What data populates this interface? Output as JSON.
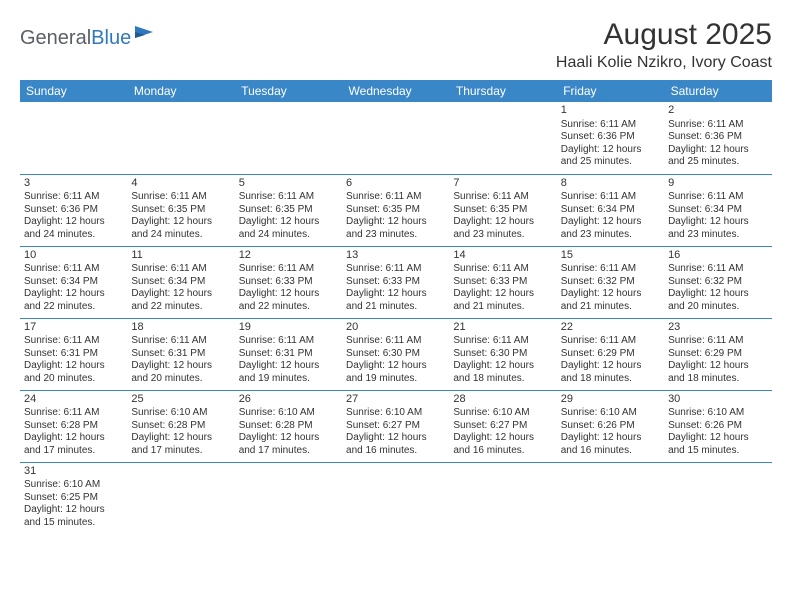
{
  "logo": {
    "text1": "General",
    "text2": "Blue"
  },
  "title": "August 2025",
  "location": "Haali Kolie Nzikro, Ivory Coast",
  "colors": {
    "header_bg": "#3a87c8",
    "header_text": "#ffffff",
    "border": "#3a87c8",
    "text": "#333333",
    "logo_gray": "#5a6066",
    "logo_blue": "#2f78bd",
    "background": "#ffffff"
  },
  "dayHeaders": [
    "Sunday",
    "Monday",
    "Tuesday",
    "Wednesday",
    "Thursday",
    "Friday",
    "Saturday"
  ],
  "weeks": [
    [
      null,
      null,
      null,
      null,
      null,
      {
        "n": "1",
        "sr": "Sunrise: 6:11 AM",
        "ss": "Sunset: 6:36 PM",
        "d1": "Daylight: 12 hours",
        "d2": "and 25 minutes."
      },
      {
        "n": "2",
        "sr": "Sunrise: 6:11 AM",
        "ss": "Sunset: 6:36 PM",
        "d1": "Daylight: 12 hours",
        "d2": "and 25 minutes."
      }
    ],
    [
      {
        "n": "3",
        "sr": "Sunrise: 6:11 AM",
        "ss": "Sunset: 6:36 PM",
        "d1": "Daylight: 12 hours",
        "d2": "and 24 minutes."
      },
      {
        "n": "4",
        "sr": "Sunrise: 6:11 AM",
        "ss": "Sunset: 6:35 PM",
        "d1": "Daylight: 12 hours",
        "d2": "and 24 minutes."
      },
      {
        "n": "5",
        "sr": "Sunrise: 6:11 AM",
        "ss": "Sunset: 6:35 PM",
        "d1": "Daylight: 12 hours",
        "d2": "and 24 minutes."
      },
      {
        "n": "6",
        "sr": "Sunrise: 6:11 AM",
        "ss": "Sunset: 6:35 PM",
        "d1": "Daylight: 12 hours",
        "d2": "and 23 minutes."
      },
      {
        "n": "7",
        "sr": "Sunrise: 6:11 AM",
        "ss": "Sunset: 6:35 PM",
        "d1": "Daylight: 12 hours",
        "d2": "and 23 minutes."
      },
      {
        "n": "8",
        "sr": "Sunrise: 6:11 AM",
        "ss": "Sunset: 6:34 PM",
        "d1": "Daylight: 12 hours",
        "d2": "and 23 minutes."
      },
      {
        "n": "9",
        "sr": "Sunrise: 6:11 AM",
        "ss": "Sunset: 6:34 PM",
        "d1": "Daylight: 12 hours",
        "d2": "and 23 minutes."
      }
    ],
    [
      {
        "n": "10",
        "sr": "Sunrise: 6:11 AM",
        "ss": "Sunset: 6:34 PM",
        "d1": "Daylight: 12 hours",
        "d2": "and 22 minutes."
      },
      {
        "n": "11",
        "sr": "Sunrise: 6:11 AM",
        "ss": "Sunset: 6:34 PM",
        "d1": "Daylight: 12 hours",
        "d2": "and 22 minutes."
      },
      {
        "n": "12",
        "sr": "Sunrise: 6:11 AM",
        "ss": "Sunset: 6:33 PM",
        "d1": "Daylight: 12 hours",
        "d2": "and 22 minutes."
      },
      {
        "n": "13",
        "sr": "Sunrise: 6:11 AM",
        "ss": "Sunset: 6:33 PM",
        "d1": "Daylight: 12 hours",
        "d2": "and 21 minutes."
      },
      {
        "n": "14",
        "sr": "Sunrise: 6:11 AM",
        "ss": "Sunset: 6:33 PM",
        "d1": "Daylight: 12 hours",
        "d2": "and 21 minutes."
      },
      {
        "n": "15",
        "sr": "Sunrise: 6:11 AM",
        "ss": "Sunset: 6:32 PM",
        "d1": "Daylight: 12 hours",
        "d2": "and 21 minutes."
      },
      {
        "n": "16",
        "sr": "Sunrise: 6:11 AM",
        "ss": "Sunset: 6:32 PM",
        "d1": "Daylight: 12 hours",
        "d2": "and 20 minutes."
      }
    ],
    [
      {
        "n": "17",
        "sr": "Sunrise: 6:11 AM",
        "ss": "Sunset: 6:31 PM",
        "d1": "Daylight: 12 hours",
        "d2": "and 20 minutes."
      },
      {
        "n": "18",
        "sr": "Sunrise: 6:11 AM",
        "ss": "Sunset: 6:31 PM",
        "d1": "Daylight: 12 hours",
        "d2": "and 20 minutes."
      },
      {
        "n": "19",
        "sr": "Sunrise: 6:11 AM",
        "ss": "Sunset: 6:31 PM",
        "d1": "Daylight: 12 hours",
        "d2": "and 19 minutes."
      },
      {
        "n": "20",
        "sr": "Sunrise: 6:11 AM",
        "ss": "Sunset: 6:30 PM",
        "d1": "Daylight: 12 hours",
        "d2": "and 19 minutes."
      },
      {
        "n": "21",
        "sr": "Sunrise: 6:11 AM",
        "ss": "Sunset: 6:30 PM",
        "d1": "Daylight: 12 hours",
        "d2": "and 18 minutes."
      },
      {
        "n": "22",
        "sr": "Sunrise: 6:11 AM",
        "ss": "Sunset: 6:29 PM",
        "d1": "Daylight: 12 hours",
        "d2": "and 18 minutes."
      },
      {
        "n": "23",
        "sr": "Sunrise: 6:11 AM",
        "ss": "Sunset: 6:29 PM",
        "d1": "Daylight: 12 hours",
        "d2": "and 18 minutes."
      }
    ],
    [
      {
        "n": "24",
        "sr": "Sunrise: 6:11 AM",
        "ss": "Sunset: 6:28 PM",
        "d1": "Daylight: 12 hours",
        "d2": "and 17 minutes."
      },
      {
        "n": "25",
        "sr": "Sunrise: 6:10 AM",
        "ss": "Sunset: 6:28 PM",
        "d1": "Daylight: 12 hours",
        "d2": "and 17 minutes."
      },
      {
        "n": "26",
        "sr": "Sunrise: 6:10 AM",
        "ss": "Sunset: 6:28 PM",
        "d1": "Daylight: 12 hours",
        "d2": "and 17 minutes."
      },
      {
        "n": "27",
        "sr": "Sunrise: 6:10 AM",
        "ss": "Sunset: 6:27 PM",
        "d1": "Daylight: 12 hours",
        "d2": "and 16 minutes."
      },
      {
        "n": "28",
        "sr": "Sunrise: 6:10 AM",
        "ss": "Sunset: 6:27 PM",
        "d1": "Daylight: 12 hours",
        "d2": "and 16 minutes."
      },
      {
        "n": "29",
        "sr": "Sunrise: 6:10 AM",
        "ss": "Sunset: 6:26 PM",
        "d1": "Daylight: 12 hours",
        "d2": "and 16 minutes."
      },
      {
        "n": "30",
        "sr": "Sunrise: 6:10 AM",
        "ss": "Sunset: 6:26 PM",
        "d1": "Daylight: 12 hours",
        "d2": "and 15 minutes."
      }
    ],
    [
      {
        "n": "31",
        "sr": "Sunrise: 6:10 AM",
        "ss": "Sunset: 6:25 PM",
        "d1": "Daylight: 12 hours",
        "d2": "and 15 minutes."
      },
      null,
      null,
      null,
      null,
      null,
      null
    ]
  ]
}
